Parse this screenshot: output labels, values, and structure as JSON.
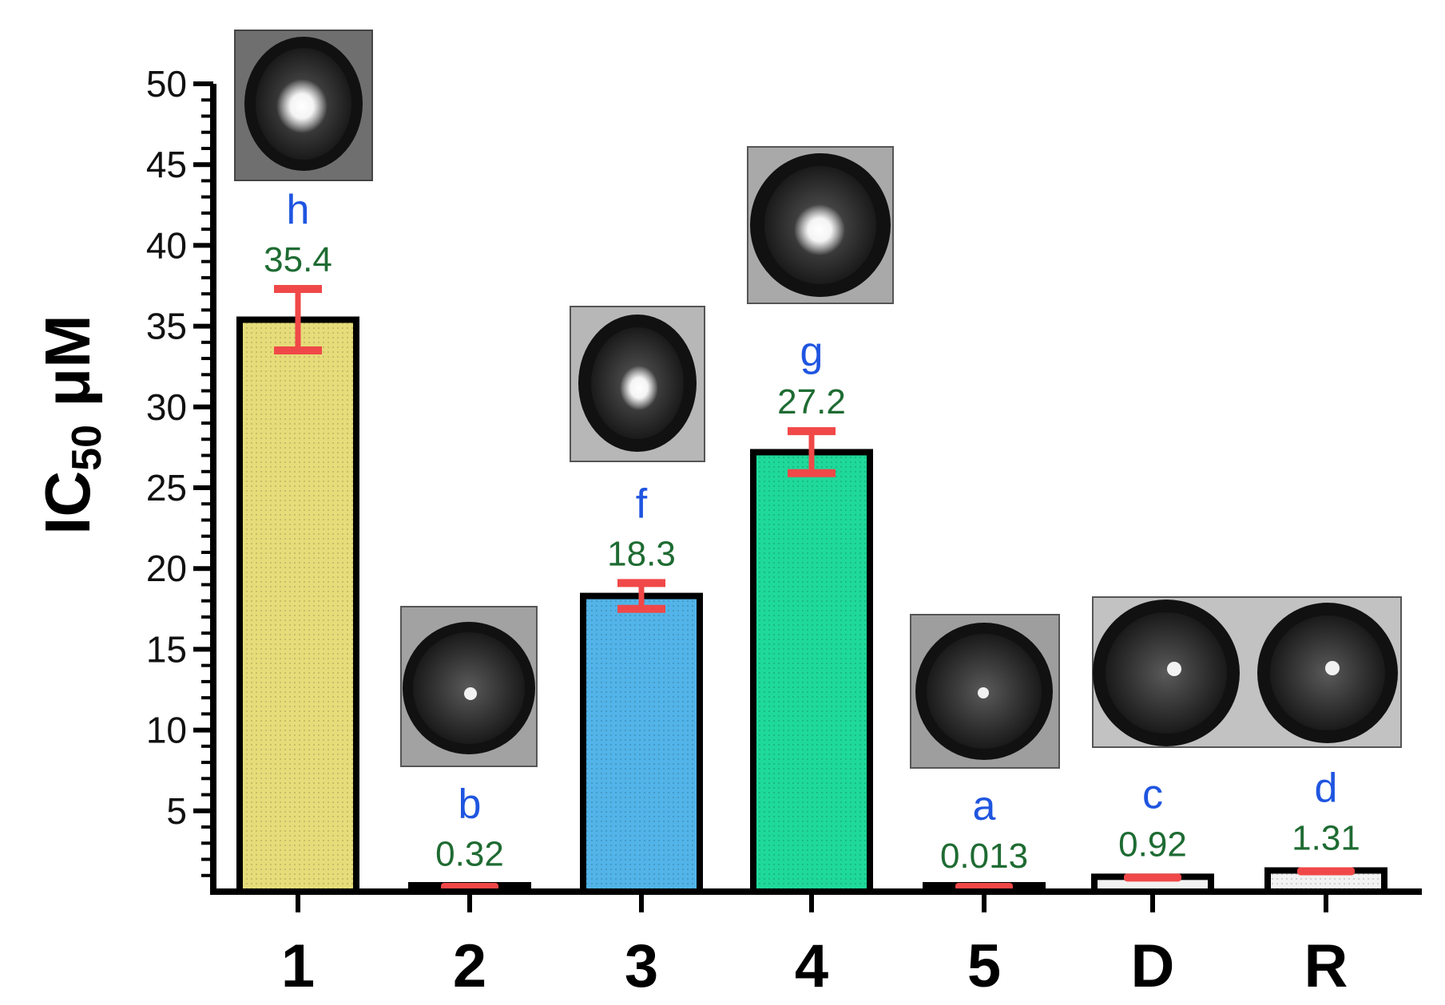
{
  "chart_data": {
    "type": "bar",
    "ylabel": {
      "main": "IC",
      "sub": "50",
      "unit": " μM"
    },
    "xlabel": "",
    "ylim": [
      0,
      50
    ],
    "yticks": [
      5,
      10,
      15,
      20,
      25,
      30,
      35,
      40,
      45,
      50
    ],
    "categories": [
      "1",
      "2",
      "3",
      "4",
      "5",
      "D",
      "R"
    ],
    "values": [
      35.4,
      0.32,
      18.3,
      27.2,
      0.013,
      0.92,
      1.31
    ],
    "value_labels": [
      "35.4",
      "0.32",
      "18.3",
      "27.2",
      "0.013",
      "0.92",
      "1.31"
    ],
    "errors": [
      1.9,
      0.2,
      0.8,
      1.3,
      0.2,
      0.2,
      0.2
    ],
    "group_letters": [
      "h",
      "b",
      "f",
      "g",
      "a",
      "c",
      "d"
    ],
    "bar_colors": [
      "#e6dc7a",
      "#f2f2f2",
      "#52b4e8",
      "#1fd99a",
      "#f2f2f2",
      "#f2f2f2",
      "#f2f2f2"
    ],
    "error_bar_color": "#f04848",
    "bar_edge_color": "#000000",
    "value_label_color": "#1e6b32",
    "group_letter_color": "#1f55e0",
    "grid": false,
    "legend": "none"
  }
}
